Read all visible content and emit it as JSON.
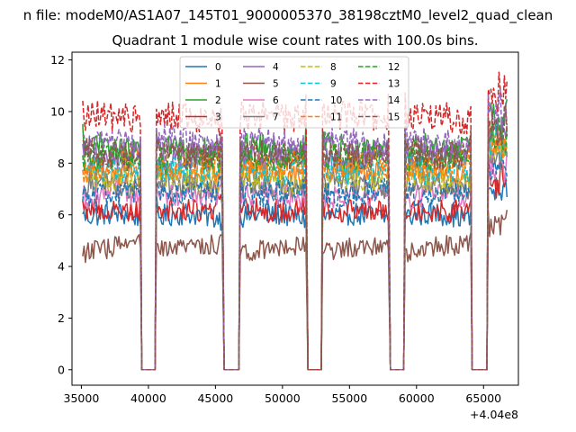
{
  "suptitle": "n file: modeM0/AS1A07_145T01_9000005370_38198cztM0_level2_quad_clean",
  "chart_data": {
    "type": "line",
    "title": "Quadrant 1 module wise count rates with 100.0s bins.",
    "xlabel": "",
    "ylabel": "",
    "x_offset_label": "+4.04e8",
    "xlim": [
      34300,
      67600
    ],
    "ylim": [
      -0.6,
      12.3
    ],
    "x_ticks": [
      35000,
      40000,
      45000,
      50000,
      55000,
      60000,
      65000
    ],
    "x_tick_labels": [
      "35000",
      "40000",
      "45000",
      "50000",
      "55000",
      "60000",
      "65000"
    ],
    "y_ticks": [
      0,
      2,
      4,
      6,
      8,
      10,
      12
    ],
    "y_tick_labels": [
      "0",
      "2",
      "4",
      "6",
      "8",
      "10",
      "12"
    ],
    "legend_position": "upper-center",
    "segments": [
      [
        35100,
        39400
      ],
      [
        40600,
        45550
      ],
      [
        46850,
        51800
      ],
      [
        53000,
        57950
      ],
      [
        59150,
        64050
      ],
      [
        65350,
        66800
      ]
    ],
    "gaps_at_zero": [
      [
        39500,
        40500
      ],
      [
        45650,
        46750
      ],
      [
        51900,
        52900
      ],
      [
        58050,
        59050
      ],
      [
        64150,
        65250
      ]
    ],
    "bin_width": 100,
    "series": [
      {
        "name": "0",
        "color": "#1f77b4",
        "dash": "solid",
        "mean": 5.9
      },
      {
        "name": "1",
        "color": "#ff7f0e",
        "dash": "solid",
        "mean": 7.6
      },
      {
        "name": "2",
        "color": "#2ca02c",
        "dash": "solid",
        "mean": 8.6
      },
      {
        "name": "3",
        "color": "#d62728",
        "dash": "solid",
        "mean": 6.3
      },
      {
        "name": "4",
        "color": "#9467bd",
        "dash": "solid",
        "mean": 8.3
      },
      {
        "name": "5",
        "color": "#8c564b",
        "dash": "solid",
        "mean": 4.7
      },
      {
        "name": "6",
        "color": "#e377c2",
        "dash": "solid",
        "mean": 6.7
      },
      {
        "name": "7",
        "color": "#7f7f7f",
        "dash": "solid",
        "mean": 7.1
      },
      {
        "name": "8",
        "color": "#bcbd22",
        "dash": "dashed",
        "mean": 7.4
      },
      {
        "name": "9",
        "color": "#17becf",
        "dash": "dashed",
        "mean": 7.8
      },
      {
        "name": "10",
        "color": "#1f77b4",
        "dash": "dashed",
        "mean": 6.9
      },
      {
        "name": "11",
        "color": "#ff7f0e",
        "dash": "dashed",
        "mean": 7.9
      },
      {
        "name": "12",
        "color": "#2ca02c",
        "dash": "dashed",
        "mean": 8.1
      },
      {
        "name": "13",
        "color": "#d62728",
        "dash": "dashed",
        "mean": 9.7
      },
      {
        "name": "14",
        "color": "#9467bd",
        "dash": "dashed",
        "mean": 8.8
      },
      {
        "name": "15",
        "color": "#8c564b",
        "dash": "dashed",
        "mean": 8.4
      }
    ]
  }
}
